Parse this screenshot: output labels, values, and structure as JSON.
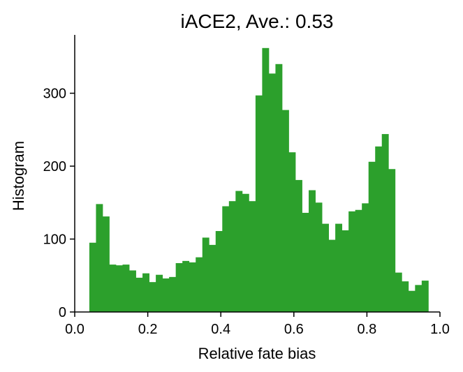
{
  "chart_data": {
    "type": "bar",
    "title": "iACE2, Ave.: 0.53",
    "xlabel": "Relative fate bias",
    "ylabel": "Histogram",
    "xlim": [
      0.0,
      1.0
    ],
    "ylim": [
      0,
      380
    ],
    "xticks": [
      "0.0",
      "0.2",
      "0.4",
      "0.6",
      "0.8",
      "1.0"
    ],
    "yticks": [
      "0",
      "100",
      "200",
      "300"
    ],
    "xtick_values": [
      0.0,
      0.2,
      0.4,
      0.6,
      0.8,
      1.0
    ],
    "ytick_values": [
      0,
      100,
      200,
      300
    ],
    "grid": false,
    "bar_color": "#2ca02c",
    "bin_start": 0.04,
    "bin_width": 0.0182,
    "values": [
      95,
      148,
      131,
      65,
      64,
      65,
      57,
      47,
      53,
      41,
      51,
      46,
      48,
      67,
      70,
      68,
      75,
      102,
      92,
      111,
      145,
      152,
      166,
      162,
      152,
      297,
      362,
      327,
      340,
      277,
      219,
      181,
      136,
      167,
      150,
      121,
      99,
      121,
      112,
      138,
      140,
      149,
      206,
      227,
      244,
      196,
      54,
      42,
      29,
      37,
      43
    ]
  }
}
